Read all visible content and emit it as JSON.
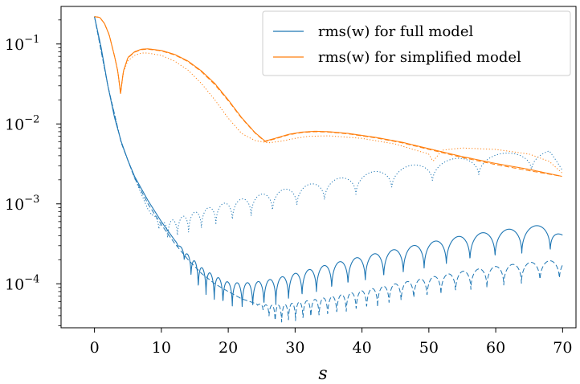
{
  "chart_data": {
    "type": "line",
    "title": "",
    "xlabel": "s",
    "ylabel": "",
    "xlim": [
      -5,
      72
    ],
    "ylim_log10": [
      -4.55,
      -0.53
    ],
    "yscale": "log",
    "xticks": [
      {
        "value": 0,
        "label": "0"
      },
      {
        "value": 10,
        "label": "10"
      },
      {
        "value": 20,
        "label": "20"
      },
      {
        "value": 30,
        "label": "30"
      },
      {
        "value": 40,
        "label": "40"
      },
      {
        "value": 50,
        "label": "50"
      },
      {
        "value": 60,
        "label": "60"
      },
      {
        "value": 70,
        "label": "70"
      }
    ],
    "yticks": [
      {
        "value": 0.1,
        "mantissa": "10",
        "exponent": "−1"
      },
      {
        "value": 0.01,
        "mantissa": "10",
        "exponent": "−2"
      },
      {
        "value": 0.001,
        "mantissa": "10",
        "exponent": "−3"
      },
      {
        "value": 0.0001,
        "mantissa": "10",
        "exponent": "−4"
      }
    ],
    "legend": {
      "position": "upper right",
      "entries": [
        {
          "label": "rms(w) for full model",
          "color": "#1f77b4"
        },
        {
          "label": "rms(w) for simplified model",
          "color": "#ff7f0e"
        }
      ]
    },
    "colors": {
      "full": "#1f77b4",
      "simplified": "#ff7f0e"
    },
    "series": [
      {
        "group": "full",
        "style": "solid",
        "x": [
          0,
          1,
          2,
          3,
          4,
          5,
          6,
          8,
          10,
          12,
          14,
          16,
          18,
          20,
          22,
          24,
          26,
          28,
          30,
          32,
          35,
          40,
          45,
          50,
          55,
          60,
          65,
          68,
          70
        ],
        "y": [
          0.22,
          0.09,
          0.03,
          0.012,
          0.006,
          0.0035,
          0.0022,
          0.0011,
          0.0006,
          0.00035,
          0.00023,
          0.00016,
          0.000125,
          0.000105,
          0.000102,
          0.000105,
          0.000112,
          0.000122,
          0.000135,
          0.00015,
          0.000175,
          0.00022,
          0.00027,
          0.00033,
          0.0004,
          0.00046,
          0.00052,
          0.00056,
          0.00041
        ],
        "oscillation": {
          "start": 12,
          "end": 70,
          "period_start": 0.9,
          "period_end": 4.5,
          "depth": 0.55
        }
      },
      {
        "group": "full",
        "style": "dashed",
        "x": [
          0,
          2,
          4,
          6,
          8,
          10,
          12,
          14,
          16,
          18,
          20,
          22,
          24,
          26,
          28,
          30,
          35,
          40,
          45,
          50,
          55,
          60,
          65,
          70
        ],
        "y": [
          0.22,
          0.03,
          0.0058,
          0.0021,
          0.001,
          0.00055,
          0.00032,
          0.0002,
          0.000135,
          0.0001,
          8e-05,
          6.5e-05,
          5.7e-05,
          5.4e-05,
          5.4e-05,
          5.8e-05,
          6.8e-05,
          8.2e-05,
          0.0001,
          0.00012,
          0.000143,
          0.000165,
          0.000185,
          0.0002
        ],
        "oscillation": {
          "start": 24,
          "end": 70,
          "period_start": 0.8,
          "period_end": 3.0,
          "depth": 0.45
        }
      },
      {
        "group": "full",
        "style": "dotted",
        "x": [
          0,
          2,
          4,
          6,
          8,
          10,
          12,
          14,
          16,
          18,
          20,
          22,
          24,
          26,
          28,
          30,
          32,
          34,
          36,
          38,
          40,
          42,
          44,
          46,
          48,
          50,
          52,
          55,
          60,
          65,
          68,
          70
        ],
        "y": [
          0.22,
          0.03,
          0.0058,
          0.0021,
          0.00085,
          0.00058,
          0.00064,
          0.00074,
          0.00084,
          0.00095,
          0.00105,
          0.00115,
          0.00127,
          0.00138,
          0.0015,
          0.00162,
          0.00175,
          0.0019,
          0.00205,
          0.0022,
          0.00238,
          0.00255,
          0.00272,
          0.0029,
          0.0031,
          0.0033,
          0.0035,
          0.0038,
          0.0042,
          0.0046,
          0.0048,
          0.0026
        ],
        "oscillation": {
          "start": 8,
          "end": 70,
          "period_start": 1.0,
          "period_end": 9.0,
          "depth": 0.45
        }
      },
      {
        "group": "simplified",
        "style": "solid",
        "x": [
          0,
          0.8,
          1.5,
          2.2,
          3.0,
          3.5,
          3.9,
          4.3,
          5.0,
          6.0,
          7.0,
          8.0,
          10,
          12,
          14,
          16,
          18,
          20,
          22,
          24,
          25.5,
          27,
          29,
          31,
          33,
          35,
          38,
          42,
          46,
          50,
          55,
          60,
          65,
          70
        ],
        "y": [
          0.22,
          0.215,
          0.18,
          0.13,
          0.07,
          0.045,
          0.024,
          0.045,
          0.068,
          0.08,
          0.086,
          0.087,
          0.083,
          0.074,
          0.061,
          0.046,
          0.032,
          0.02,
          0.012,
          0.0078,
          0.0061,
          0.0066,
          0.0074,
          0.0079,
          0.0081,
          0.008,
          0.0076,
          0.0068,
          0.0059,
          0.0049,
          0.0039,
          0.0032,
          0.0027,
          0.0022
        ]
      },
      {
        "group": "simplified",
        "style": "dashed",
        "x": [
          0,
          0.8,
          1.5,
          2.2,
          3.0,
          3.5,
          3.9,
          4.3,
          5.0,
          6.0,
          7.0,
          8.0,
          10,
          12,
          14,
          16,
          18,
          20,
          22,
          24,
          25.5,
          27,
          29,
          31,
          33,
          35,
          38,
          42,
          46,
          50,
          55,
          60,
          65,
          70
        ],
        "y": [
          0.22,
          0.215,
          0.18,
          0.13,
          0.07,
          0.045,
          0.024,
          0.045,
          0.067,
          0.079,
          0.085,
          0.086,
          0.082,
          0.073,
          0.06,
          0.045,
          0.031,
          0.0195,
          0.0118,
          0.0077,
          0.006,
          0.0065,
          0.0073,
          0.0078,
          0.008,
          0.0079,
          0.0075,
          0.0067,
          0.0058,
          0.0048,
          0.0038,
          0.0031,
          0.0026,
          0.0022
        ]
      },
      {
        "group": "simplified",
        "style": "dotted",
        "x": [
          0,
          0.8,
          1.5,
          2.2,
          3.0,
          3.5,
          3.9,
          4.3,
          5.0,
          6.0,
          7.0,
          8.0,
          10,
          12,
          14,
          16,
          18,
          20,
          22,
          24,
          26,
          28,
          30,
          32,
          35,
          40,
          45,
          48,
          50,
          50.6,
          52,
          55,
          60,
          65,
          68,
          70
        ],
        "y": [
          0.22,
          0.215,
          0.18,
          0.13,
          0.07,
          0.045,
          0.024,
          0.044,
          0.062,
          0.072,
          0.077,
          0.077,
          0.072,
          0.061,
          0.047,
          0.032,
          0.02,
          0.0118,
          0.0076,
          0.0062,
          0.0058,
          0.0061,
          0.0066,
          0.007,
          0.0071,
          0.0066,
          0.0056,
          0.0047,
          0.0042,
          0.0034,
          0.0047,
          0.005,
          0.0048,
          0.0042,
          0.0034,
          0.0024
        ]
      }
    ]
  }
}
